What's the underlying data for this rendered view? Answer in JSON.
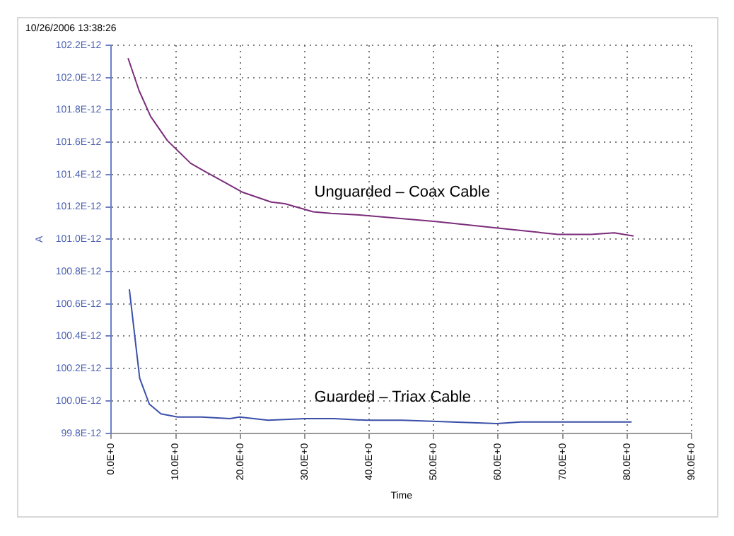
{
  "chart_data": {
    "type": "line",
    "title": "10/26/2006 13:38:26",
    "xlabel": "Time",
    "ylabel": "A",
    "xlim": [
      0,
      90
    ],
    "xticks": [
      {
        "value": 0,
        "label": "0.0E+0"
      },
      {
        "value": 10,
        "label": "10.0E+0"
      },
      {
        "value": 20,
        "label": "20.0E+0"
      },
      {
        "value": 30,
        "label": "30.0E+0"
      },
      {
        "value": 40,
        "label": "40.0E+0"
      },
      {
        "value": 50,
        "label": "50.0E+0"
      },
      {
        "value": 60,
        "label": "60.0E+0"
      },
      {
        "value": 70,
        "label": "70.0E+0"
      },
      {
        "value": 80,
        "label": "80.0E+0"
      },
      {
        "value": 90,
        "label": "90.0E+0"
      }
    ],
    "ylim": [
      9.98e-11,
      1.022e-10
    ],
    "yticks": [
      {
        "value": 9.98e-11,
        "label": "99.8E-12"
      },
      {
        "value": 1e-10,
        "label": "100.0E-12"
      },
      {
        "value": 1.002e-10,
        "label": "100.2E-12"
      },
      {
        "value": 1.004e-10,
        "label": "100.4E-12"
      },
      {
        "value": 1.006e-10,
        "label": "100.6E-12"
      },
      {
        "value": 1.008e-10,
        "label": "100.8E-12"
      },
      {
        "value": 1.01e-10,
        "label": "101.0E-12"
      },
      {
        "value": 1.012e-10,
        "label": "101.2E-12"
      },
      {
        "value": 1.014e-10,
        "label": "101.4E-12"
      },
      {
        "value": 1.016e-10,
        "label": "101.6E-12"
      },
      {
        "value": 1.018e-10,
        "label": "101.8E-12"
      },
      {
        "value": 1.02e-10,
        "label": "102.0E-12"
      },
      {
        "value": 1.022e-10,
        "label": "102.2E-12"
      }
    ],
    "grid": true,
    "legend": false,
    "marker": "none",
    "line_style": "solid",
    "series": [
      {
        "name": "Unguarded – Coax Cable",
        "color": "#7b2d7b",
        "x": [
          2.6,
          4.3,
          6.1,
          8.7,
          12.3,
          14.5,
          20.4,
          24.8,
          26.9,
          31.3,
          34.1,
          38.5,
          50.3,
          62,
          69.3,
          74.4,
          78,
          81
        ],
        "values": [
          1.0212e-10,
          1.0192e-10,
          1.0176e-10,
          1.0161e-10,
          1.0147e-10,
          1.0142e-10,
          1.0129e-10,
          1.0123e-10,
          1.0122e-10,
          1.0117e-10,
          1.0116e-10,
          1.0115e-10,
          1.0111e-10,
          1.0106e-10,
          1.0103e-10,
          1.0103e-10,
          1.0104e-10,
          1.0102e-10
        ]
      },
      {
        "name": "Guarded – Triax Cable",
        "color": "#3a4fa8",
        "x": [
          2.8,
          3.7,
          4.4,
          5.9,
          7.7,
          10.3,
          14,
          18.4,
          19.9,
          24.3,
          30.1,
          34.6,
          39.7,
          45.1,
          59.8,
          63.5,
          69.3,
          74.5,
          80.7
        ],
        "values": [
          1.0069e-10,
          1.0038e-10,
          1.0014e-10,
          9.998e-11,
          9.992e-11,
          9.99e-11,
          9.99e-11,
          9.989e-11,
          9.99e-11,
          9.988e-11,
          9.989e-11,
          9.989e-11,
          9.988e-11,
          9.988e-11,
          9.986e-11,
          9.987e-11,
          9.987e-11,
          9.987e-11,
          9.987e-11
        ]
      }
    ]
  }
}
